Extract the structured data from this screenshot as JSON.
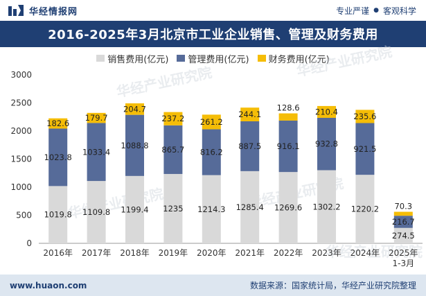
{
  "header": {
    "brand_name": "华经情报网",
    "tagline_left": "专业严谨",
    "tagline_right": "客观科学"
  },
  "chart_data": {
    "type": "bar",
    "stacked": true,
    "title": "2016-2025年3月北京市工业企业销售、管理及财务费用",
    "categories": [
      "2016年",
      "2017年",
      "2018年",
      "2019年",
      "2020年",
      "2021年",
      "2022年",
      "2023年",
      "2024年",
      "2025年 1-3月"
    ],
    "category_lines": [
      [
        "2016年"
      ],
      [
        "2017年"
      ],
      [
        "2018年"
      ],
      [
        "2019年"
      ],
      [
        "2020年"
      ],
      [
        "2021年"
      ],
      [
        "2022年"
      ],
      [
        "2023年"
      ],
      [
        "2024年"
      ],
      [
        "2025年",
        "1-3月"
      ]
    ],
    "series": [
      {
        "name": "销售费用(亿元)",
        "color": "#d9d9d9",
        "values": [
          1019.8,
          1109.8,
          1199.4,
          1235,
          1214.3,
          1285.4,
          1269.6,
          1302.2,
          1220.2,
          274.5
        ],
        "labels": [
          "1019.8",
          "1109.8",
          "1199.4",
          "1235",
          "1214.3",
          "1285.4",
          "1269.6",
          "1302.2",
          "1220.2",
          "274.5"
        ]
      },
      {
        "name": "管理费用(亿元)",
        "color": "#566b99",
        "values": [
          1023.8,
          1033.4,
          1088.8,
          865.7,
          816.2,
          887.5,
          916.1,
          932.8,
          921.5,
          216.7
        ],
        "labels": [
          "1023.8",
          "1033.4",
          "1088.8",
          "865.7",
          "816.2",
          "887.5",
          "916.1",
          "932.8",
          "921.5",
          "216.7"
        ]
      },
      {
        "name": "财务费用(亿元)",
        "color": "#f5bd07",
        "values": [
          182.6,
          179.7,
          204.7,
          237.2,
          261.2,
          244.1,
          128.6,
          210.4,
          235.6,
          70.3
        ],
        "labels": [
          "182.6",
          "179.7",
          "204.7",
          "237.2",
          "261.2",
          "244.1",
          "128.6",
          "210.4",
          "235.6",
          "70.3"
        ]
      }
    ],
    "ylim": [
      0,
      3000
    ],
    "yticks": [
      0,
      500,
      1000,
      1500,
      2000,
      2500,
      3000
    ],
    "ytick_labels": [
      "0",
      "500",
      "1000",
      "1500",
      "2000",
      "2500",
      "3000"
    ],
    "legend_position": "top-center",
    "grid": false
  },
  "watermark": {
    "text_cn": "华经产业研究院",
    "text_url": "www.huaon.com"
  },
  "footer": {
    "url": "www.huaon.com",
    "source": "数据来源：国家统计局，华经产业研究院整理"
  }
}
